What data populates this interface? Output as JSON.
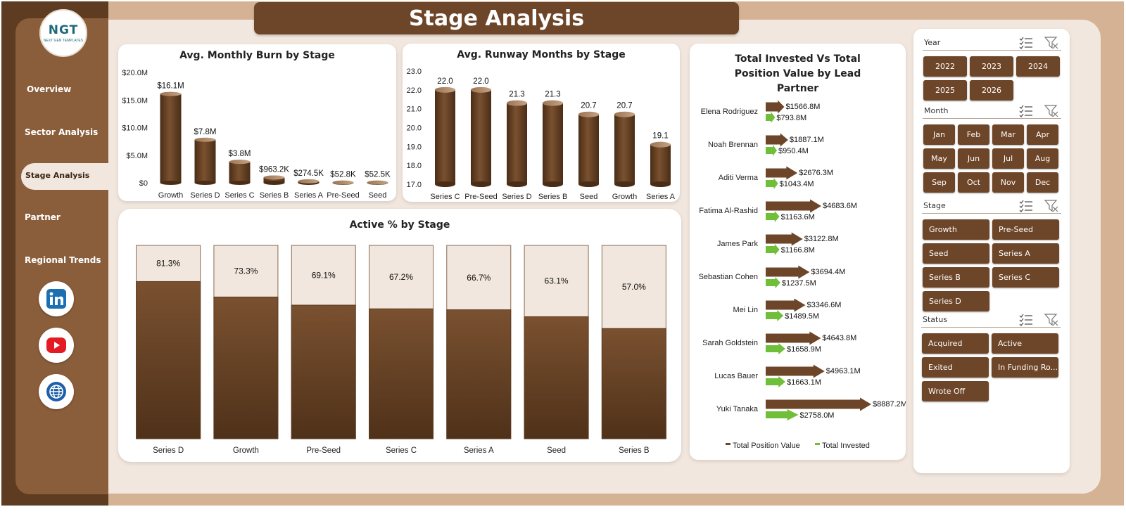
{
  "title": "Stage Analysis",
  "logo": {
    "mark": "NGT",
    "sub": "NEXT GEN TEMPLATES"
  },
  "nav": {
    "items": [
      {
        "key": "overview",
        "label": "Overview"
      },
      {
        "key": "sector",
        "label": "Sector Analysis"
      },
      {
        "key": "stage",
        "label": "Stage Analysis",
        "active": true
      },
      {
        "key": "partner",
        "label": "Partner"
      },
      {
        "key": "regional",
        "label": "Regional Trends"
      }
    ],
    "social_icons": [
      "linkedin-icon",
      "youtube-icon",
      "globe-icon"
    ]
  },
  "colors": {
    "brown": "#6d4528",
    "dark_brown": "#5d3c22",
    "sidebar": "#8b5e3b",
    "green": "#6fbf3a",
    "light_cream": "#f2e7de"
  },
  "chart_data": [
    {
      "id": "burn",
      "type": "bar",
      "title": "Avg. Monthly Burn by Stage",
      "categories": [
        "Growth",
        "Series D",
        "Series C",
        "Series B",
        "Series A",
        "Pre-Seed",
        "Seed"
      ],
      "values": [
        16.1,
        7.8,
        3.8,
        0.9632,
        0.2745,
        0.0528,
        0.0525
      ],
      "data_labels": [
        "$16.1M",
        "$7.8M",
        "$3.8M",
        "$963.2K",
        "$274.5K",
        "$52.8K",
        "$52.5K"
      ],
      "ylim": [
        0,
        20
      ],
      "yticks": [
        "$0",
        "$5.0M",
        "$10.0M",
        "$15.0M",
        "$20.0M"
      ]
    },
    {
      "id": "runway",
      "type": "bar",
      "title": "Avg. Runway Months by Stage",
      "categories": [
        "Series C",
        "Pre-Seed",
        "Series D",
        "Series B",
        "Seed",
        "Growth",
        "Series A"
      ],
      "values": [
        22.0,
        22.0,
        21.3,
        21.3,
        20.7,
        20.7,
        19.1
      ],
      "data_labels": [
        "22.0",
        "22.0",
        "21.3",
        "21.3",
        "20.7",
        "20.7",
        "19.1"
      ],
      "ylim": [
        17,
        23
      ],
      "yticks": [
        "17.0",
        "18.0",
        "19.0",
        "20.0",
        "21.0",
        "22.0",
        "23.0"
      ]
    },
    {
      "id": "active",
      "type": "bar",
      "title": "Active % by Stage",
      "categories": [
        "Series D",
        "Growth",
        "Pre-Seed",
        "Series C",
        "Series A",
        "Seed",
        "Series B"
      ],
      "values": [
        81.3,
        73.3,
        69.1,
        67.2,
        66.7,
        63.1,
        57.0
      ],
      "data_labels": [
        "81.3%",
        "73.3%",
        "69.1%",
        "67.2%",
        "66.7%",
        "63.1%",
        "57.0%"
      ],
      "ylim": [
        0,
        100
      ]
    },
    {
      "id": "partner",
      "type": "bar",
      "title": "Total Invested Vs Total Position Value by Lead Partner",
      "categories": [
        "Elena Rodriguez",
        "Noah Brennan",
        "Aditi Verma",
        "Fatima Al-Rashid",
        "James Park",
        "Sebastian Cohen",
        "Mei Lin",
        "Sarah Goldstein",
        "Lucas Bauer",
        "Yuki Tanaka"
      ],
      "series": [
        {
          "name": "Total Position Value",
          "color": "#6d4528",
          "values": [
            1566.8,
            1887.1,
            2676.3,
            4683.6,
            3122.8,
            3694.4,
            3346.6,
            4643.8,
            4963.1,
            8887.2
          ],
          "labels": [
            "$1566.8M",
            "$1887.1M",
            "$2676.3M",
            "$4683.6M",
            "$3122.8M",
            "$3694.4M",
            "$3346.6M",
            "$4643.8M",
            "$4963.1M",
            "$8887.2M"
          ]
        },
        {
          "name": "Total Invested",
          "color": "#6fbf3a",
          "values": [
            793.8,
            950.4,
            1043.4,
            1163.6,
            1166.8,
            1237.5,
            1489.5,
            1658.9,
            1663.1,
            2758.0
          ],
          "labels": [
            "$793.8M",
            "$950.4M",
            "$1043.4M",
            "$1163.6M",
            "$1166.8M",
            "$1237.5M",
            "$1489.5M",
            "$1658.9M",
            "$1663.1M",
            "$2758.0M"
          ]
        }
      ],
      "legend": "bottom"
    }
  ],
  "slicers": {
    "year": {
      "label": "Year",
      "options": [
        "2022",
        "2023",
        "2024",
        "2025",
        "2026"
      ]
    },
    "month": {
      "label": "Month",
      "options": [
        "Jan",
        "Feb",
        "Mar",
        "Apr",
        "May",
        "Jun",
        "Jul",
        "Aug",
        "Sep",
        "Oct",
        "Nov",
        "Dec"
      ]
    },
    "stage": {
      "label": "Stage",
      "options": [
        "Growth",
        "Pre-Seed",
        "Seed",
        "Series A",
        "Series B",
        "Series C",
        "Series D"
      ]
    },
    "status": {
      "label": "Status",
      "options": [
        "Acquired",
        "Active",
        "Exited",
        "In Funding Ro...",
        "Wrote Off"
      ]
    }
  }
}
